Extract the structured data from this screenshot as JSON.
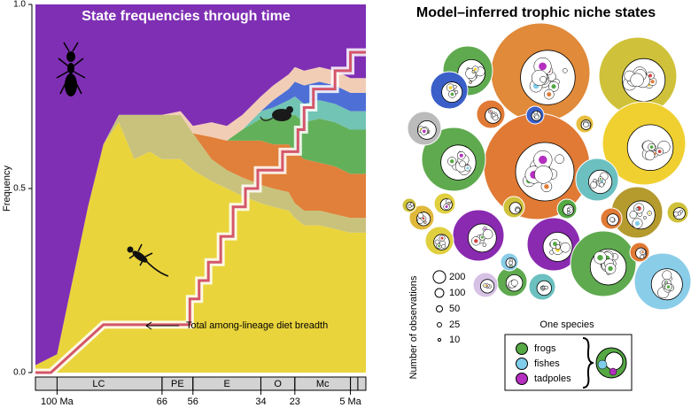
{
  "chart_data": {
    "type": "stacked-area",
    "title": "State frequencies through time",
    "ylabel": "Frequency",
    "xlim": [
      107,
      0
    ],
    "ylim": [
      0,
      1
    ],
    "yticks": [
      {
        "value": 0,
        "label": "0.0"
      },
      {
        "value": 0.5,
        "label": "0.5"
      },
      {
        "value": 1,
        "label": "1.0"
      }
    ],
    "xticks": [
      {
        "value": 100,
        "label": "100 Ma"
      },
      66,
      56,
      34,
      23,
      {
        "value": 5,
        "label": "5 Ma"
      }
    ],
    "periods": {
      "names": [
        "LC",
        "PE",
        "E",
        "O",
        "Mc",
        null,
        null
      ],
      "bounds": [
        107,
        66,
        56,
        34,
        23,
        5,
        2.6,
        0
      ]
    },
    "x": [
      107,
      100,
      95,
      90,
      85,
      80,
      75,
      70,
      66,
      60,
      56,
      50,
      45,
      40,
      34,
      30,
      25,
      23,
      20,
      15,
      10,
      5,
      0
    ],
    "series": [
      {
        "color": "#ead43c",
        "values": [
          0.02,
          0.05,
          0.25,
          0.45,
          0.62,
          0.68,
          0.58,
          0.6,
          0.58,
          0.58,
          0.55,
          0.52,
          0.5,
          0.48,
          0.46,
          0.45,
          0.44,
          0.42,
          0.4,
          0.4,
          0.39,
          0.38,
          0.38
        ]
      },
      {
        "color": "#c9c27c",
        "values": [
          0,
          0,
          0,
          0,
          0,
          0.02,
          0.12,
          0.1,
          0.12,
          0.12,
          0.1,
          0.06,
          0.05,
          0.05,
          0.05,
          0.05,
          0.05,
          0.04,
          0.04,
          0.04,
          0.04,
          0.04,
          0.04
        ]
      },
      {
        "color": "#e0803a",
        "values": [
          0,
          0,
          0,
          0,
          0,
          0,
          0,
          0,
          0,
          0,
          0,
          0.06,
          0.08,
          0.1,
          0.12,
          0.12,
          0.13,
          0.14,
          0.14,
          0.13,
          0.13,
          0.12,
          0.12
        ]
      },
      {
        "color": "#63b05a",
        "values": [
          0,
          0,
          0,
          0,
          0,
          0,
          0,
          0,
          0,
          0,
          0,
          0,
          0,
          0.03,
          0.06,
          0.07,
          0.08,
          0.1,
          0.1,
          0.12,
          0.12,
          0.12,
          0.12
        ]
      },
      {
        "color": "#72c4b4",
        "values": [
          0,
          0,
          0,
          0,
          0,
          0,
          0,
          0,
          0,
          0,
          0,
          0,
          0,
          0,
          0.02,
          0.03,
          0.04,
          0.05,
          0.05,
          0.05,
          0.05,
          0.05,
          0.05
        ]
      },
      {
        "color": "#4d6fd6",
        "values": [
          0,
          0,
          0,
          0,
          0,
          0,
          0,
          0,
          0,
          0,
          0,
          0,
          0,
          0,
          0,
          0.02,
          0.03,
          0.04,
          0.05,
          0.05,
          0.05,
          0.05,
          0.05
        ]
      },
      {
        "color": "#f2cdb6",
        "values": [
          0,
          0,
          0,
          0,
          0,
          0,
          0,
          0,
          0,
          0.01,
          0.02,
          0.04,
          0.04,
          0.04,
          0.04,
          0.04,
          0.04,
          0.04,
          0.04,
          0.04,
          0.04,
          0.04,
          0.04
        ]
      },
      {
        "color": "#7f2fb4",
        "values": [
          0.98,
          0.95,
          0.75,
          0.55,
          0.38,
          0.3,
          0.3,
          0.3,
          0.3,
          0.29,
          0.33,
          0.32,
          0.33,
          0.3,
          0.25,
          0.22,
          0.19,
          0.17,
          0.18,
          0.17,
          0.18,
          0.2,
          0.2
        ]
      }
    ],
    "diet_breadth": {
      "color": "#d4566a",
      "x": [
        107,
        102,
        85,
        57,
        57,
        54,
        54,
        51,
        51,
        47,
        47,
        43,
        43,
        39,
        39,
        35,
        35,
        27,
        27,
        22,
        22,
        20,
        20,
        17,
        17,
        10,
        10,
        5,
        5,
        0
      ],
      "values": [
        0,
        0,
        0.13,
        0.13,
        0.2,
        0.2,
        0.25,
        0.25,
        0.3,
        0.3,
        0.37,
        0.37,
        0.45,
        0.45,
        0.5,
        0.5,
        0.55,
        0.55,
        0.6,
        0.6,
        0.66,
        0.66,
        0.72,
        0.72,
        0.77,
        0.77,
        0.82,
        0.82,
        0.87,
        0.87
      ]
    },
    "annotation": "Total among-lineage diet breadth"
  },
  "bubble_panel": {
    "title": "Model–inferred trophic niche states",
    "size_legend": {
      "title": "Number of observations",
      "values": [
        200,
        100,
        50,
        25,
        10
      ]
    },
    "one_species": "One species",
    "diet_legend": [
      {
        "name": "frogs",
        "color": "#55a844"
      },
      {
        "name": "fishes",
        "color": "#7fcdea"
      },
      {
        "name": "tadpoles",
        "color": "#b52fc0"
      }
    ]
  }
}
